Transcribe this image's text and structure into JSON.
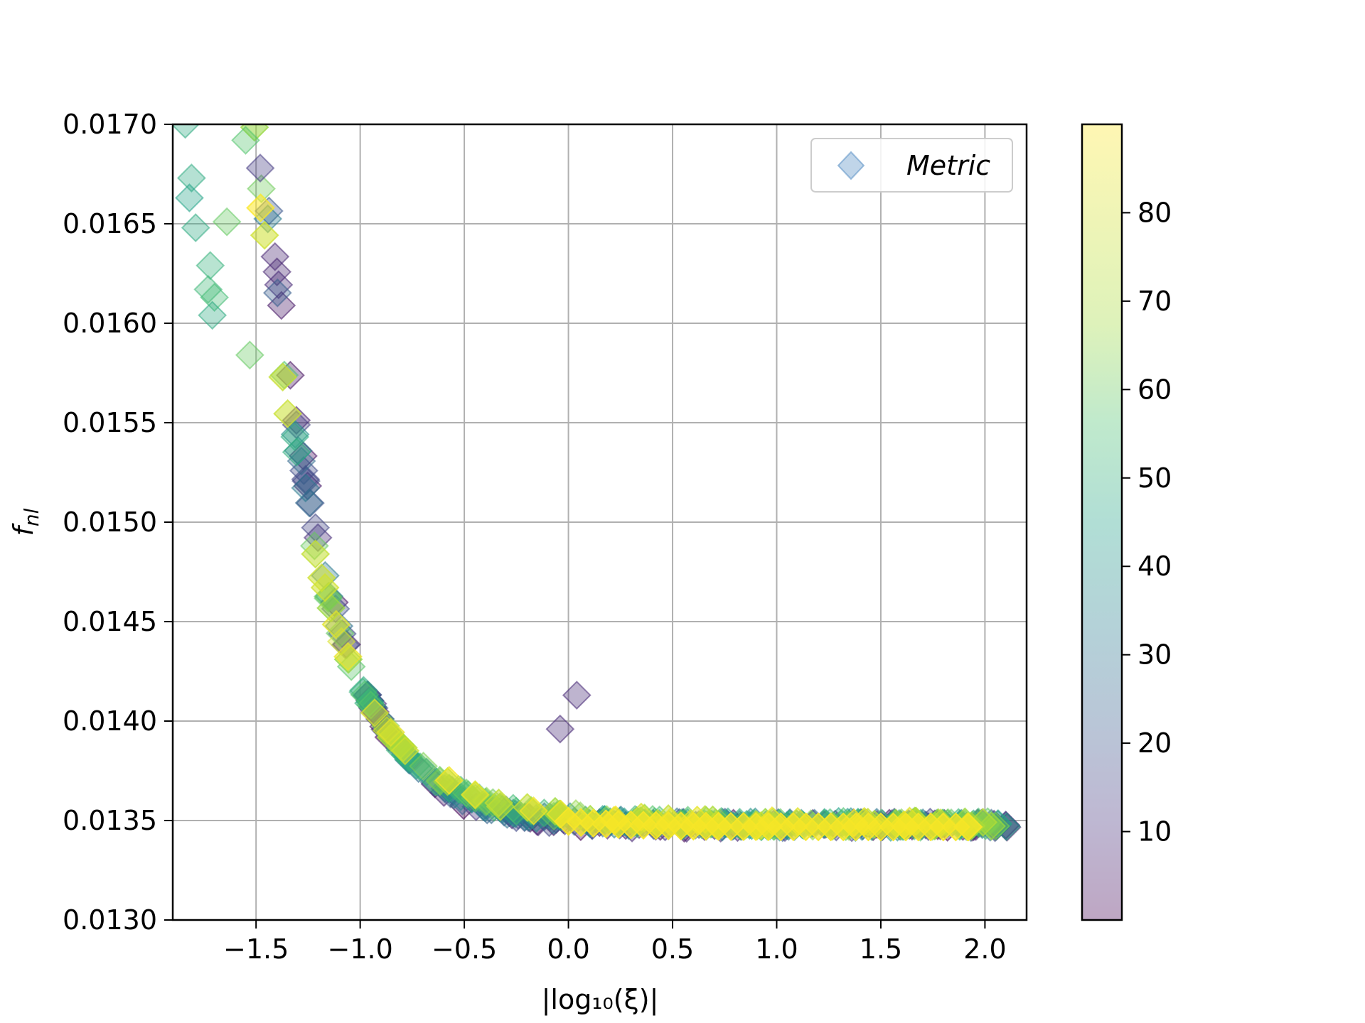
{
  "chart_data": {
    "type": "scatter",
    "xlabel": "|log₁₀(ξ)|",
    "ylabel": "f",
    "ylabel_sub": "nl",
    "xlim": [
      -1.9,
      2.2
    ],
    "ylim": [
      0.013,
      0.017
    ],
    "xticks": [
      -1.5,
      -1.0,
      -0.5,
      0.0,
      0.5,
      1.0,
      1.5,
      2.0
    ],
    "xtick_labels": [
      "−1.5",
      "−1.0",
      "−0.5",
      "0.0",
      "0.5",
      "1.0",
      "1.5",
      "2.0"
    ],
    "yticks": [
      0.013,
      0.0135,
      0.014,
      0.0145,
      0.015,
      0.0155,
      0.016,
      0.0165,
      0.017
    ],
    "ytick_labels": [
      "0.0130",
      "0.0135",
      "0.0140",
      "0.0145",
      "0.0150",
      "0.0155",
      "0.0160",
      "0.0165",
      "0.0170"
    ],
    "grid": true,
    "marker": "diamond",
    "alpha": 0.3,
    "legend": {
      "placement": "top-right",
      "label": "Metric"
    },
    "colorbar": {
      "colormap": "viridis",
      "range": [
        0,
        90
      ],
      "ticks": [
        10,
        20,
        30,
        40,
        50,
        60,
        70,
        80
      ],
      "tick_labels": [
        "10",
        "20",
        "30",
        "40",
        "50",
        "60",
        "70",
        "80"
      ]
    },
    "curve_model": {
      "asymptote": 0.01348,
      "amplitude": 2.76e-05,
      "rate": 3.25,
      "x_range": [
        -1.75,
        2.12
      ]
    },
    "outliers": [
      {
        "x": -1.84,
        "y": 0.017,
        "c": 55
      },
      {
        "x": -1.81,
        "y": 0.01673,
        "c": 55
      },
      {
        "x": -1.82,
        "y": 0.01663,
        "c": 52
      },
      {
        "x": -1.79,
        "y": 0.01648,
        "c": 55
      },
      {
        "x": -1.55,
        "y": 0.01692,
        "c": 65
      },
      {
        "x": -1.48,
        "y": 0.01678,
        "c": 15
      },
      {
        "x": -1.64,
        "y": 0.01651,
        "c": 68
      },
      {
        "x": -1.72,
        "y": 0.01629,
        "c": 58
      },
      {
        "x": -1.73,
        "y": 0.01617,
        "c": 60
      },
      {
        "x": -1.7,
        "y": 0.01613,
        "c": 62
      },
      {
        "x": -1.71,
        "y": 0.01604,
        "c": 55
      },
      {
        "x": -1.53,
        "y": 0.01584,
        "c": 68
      },
      {
        "x": -0.04,
        "y": 0.01396,
        "c": 10
      },
      {
        "x": 0.04,
        "y": 0.01413,
        "c": 10
      },
      {
        "x": -1.09,
        "y": 0.0144,
        "c": 85
      }
    ]
  }
}
